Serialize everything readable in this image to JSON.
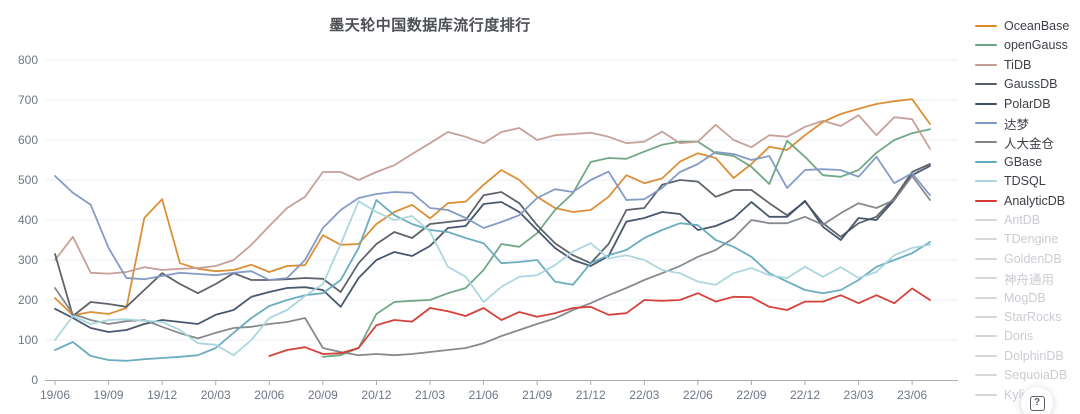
{
  "title": "墨天轮中国数据库流行度排行",
  "help_button": {
    "label": "?"
  },
  "axis": {
    "y_ticks": [
      0,
      100,
      200,
      300,
      400,
      500,
      600,
      700,
      800
    ],
    "x_labels": [
      "19/06",
      "19/09",
      "19/12",
      "20/03",
      "20/06",
      "20/09",
      "20/12",
      "21/03",
      "21/06",
      "21/09",
      "21/12",
      "22/03",
      "22/06",
      "22/09",
      "22/12",
      "23/03",
      "23/06"
    ]
  },
  "colors": {
    "grid": "#e8eef6",
    "axis_line": "#a7adb5",
    "tick_label": "#6e7686",
    "inactive_legend": "#d5d8db"
  },
  "chart_data": {
    "type": "line",
    "title": "墨天轮中国数据库流行度排行",
    "xlabel": "",
    "ylabel": "",
    "ylim": [
      0,
      800
    ],
    "grid": true,
    "legend_position": "right",
    "x_quarter_labels": [
      "19/06",
      "19/09",
      "19/12",
      "20/03",
      "20/06",
      "20/09",
      "20/12",
      "21/03",
      "21/06",
      "21/09",
      "21/12",
      "22/03",
      "22/06",
      "22/09",
      "22/12",
      "23/03",
      "23/06"
    ],
    "points_per_series": 50,
    "note": "values are monthly from 2019/06 through 2023/07, read off 0-800 axis",
    "series": [
      {
        "name": "OceanBase",
        "color": "#d98a2d",
        "values": [
          205,
          162,
          170,
          165,
          180,
          405,
          452,
          292,
          278,
          272,
          275,
          288,
          270,
          285,
          287,
          362,
          338,
          340,
          390,
          420,
          438,
          404,
          442,
          446,
          488,
          525,
          500,
          458,
          430,
          420,
          425,
          458,
          512,
          492,
          504,
          546,
          567,
          555,
          505,
          540,
          583,
          575,
          612,
          645,
          665,
          678,
          690,
          697,
          702,
          640
        ]
      },
      {
        "name": "openGauss",
        "color": "#69a37f",
        "values": [
          null,
          null,
          null,
          null,
          null,
          null,
          null,
          null,
          null,
          null,
          null,
          null,
          null,
          null,
          null,
          58,
          62,
          80,
          165,
          195,
          198,
          200,
          217,
          230,
          275,
          340,
          333,
          367,
          425,
          467,
          545,
          555,
          553,
          571,
          588,
          596,
          596,
          567,
          560,
          533,
          490,
          598,
          558,
          512,
          508,
          525,
          568,
          600,
          617,
          627
        ]
      },
      {
        "name": "TiDB",
        "color": "#c49c93",
        "values": [
          300,
          358,
          268,
          266,
          270,
          282,
          275,
          278,
          280,
          285,
          300,
          338,
          385,
          430,
          458,
          520,
          520,
          500,
          520,
          537,
          565,
          592,
          620,
          608,
          592,
          620,
          630,
          600,
          612,
          615,
          618,
          608,
          592,
          596,
          621,
          592,
          596,
          638,
          600,
          582,
          612,
          608,
          633,
          648,
          635,
          662,
          612,
          657,
          652,
          578
        ]
      },
      {
        "name": "GaussDB",
        "color": "#565c63",
        "values": [
          315,
          160,
          195,
          190,
          183,
          225,
          267,
          240,
          217,
          240,
          267,
          250,
          250,
          252,
          255,
          253,
          220,
          292,
          340,
          370,
          355,
          390,
          395,
          400,
          462,
          470,
          442,
          387,
          342,
          312,
          292,
          340,
          425,
          430,
          488,
          500,
          496,
          458,
          475,
          475,
          442,
          412,
          446,
          392,
          358,
          392,
          408,
          455,
          520,
          540
        ]
      },
      {
        "name": "PolarDB",
        "color": "#3f4f66",
        "values": [
          178,
          155,
          130,
          120,
          125,
          140,
          150,
          145,
          140,
          163,
          175,
          208,
          220,
          230,
          232,
          225,
          183,
          255,
          300,
          320,
          310,
          335,
          380,
          385,
          440,
          445,
          420,
          375,
          330,
          300,
          285,
          310,
          396,
          405,
          420,
          415,
          375,
          385,
          404,
          445,
          408,
          408,
          448,
          383,
          350,
          405,
          400,
          450,
          512,
          535
        ]
      },
      {
        "name": "达梦",
        "color": "#7e97c4",
        "values": [
          510,
          468,
          438,
          330,
          255,
          252,
          260,
          268,
          265,
          262,
          268,
          272,
          250,
          255,
          300,
          380,
          425,
          455,
          465,
          470,
          468,
          430,
          425,
          405,
          380,
          395,
          412,
          455,
          477,
          470,
          500,
          521,
          450,
          452,
          480,
          520,
          540,
          570,
          565,
          550,
          560,
          480,
          525,
          527,
          525,
          508,
          558,
          492,
          517,
          462
        ]
      },
      {
        "name": "人大金仓",
        "color": "#828489",
        "values": [
          230,
          165,
          150,
          140,
          147,
          150,
          133,
          117,
          104,
          118,
          130,
          133,
          140,
          145,
          155,
          80,
          70,
          62,
          65,
          62,
          65,
          70,
          75,
          80,
          92,
          110,
          125,
          140,
          154,
          175,
          192,
          212,
          230,
          250,
          267,
          285,
          308,
          325,
          355,
          400,
          392,
          392,
          408,
          388,
          417,
          442,
          430,
          450,
          510,
          450
        ]
      },
      {
        "name": "GBase",
        "color": "#64a9bd",
        "values": [
          75,
          95,
          60,
          50,
          48,
          52,
          55,
          58,
          62,
          80,
          118,
          155,
          185,
          200,
          212,
          217,
          250,
          330,
          450,
          412,
          390,
          375,
          370,
          355,
          342,
          292,
          295,
          300,
          246,
          238,
          292,
          312,
          325,
          355,
          375,
          392,
          387,
          350,
          333,
          308,
          267,
          246,
          225,
          217,
          225,
          250,
          283,
          300,
          317,
          345
        ]
      },
      {
        "name": "TDSQL",
        "color": "#a9d5dc",
        "values": [
          100,
          160,
          140,
          150,
          152,
          148,
          145,
          125,
          92,
          88,
          62,
          100,
          155,
          175,
          210,
          240,
          340,
          447,
          420,
          400,
          410,
          371,
          283,
          258,
          195,
          233,
          258,
          262,
          287,
          321,
          342,
          304,
          312,
          300,
          275,
          267,
          246,
          238,
          267,
          280,
          262,
          255,
          283,
          258,
          282,
          255,
          270,
          312,
          330,
          338
        ]
      },
      {
        "name": "AnalyticDB",
        "color": "#d23a32",
        "values": [
          null,
          null,
          null,
          null,
          null,
          null,
          null,
          null,
          null,
          null,
          null,
          null,
          60,
          75,
          82,
          65,
          67,
          80,
          137,
          150,
          146,
          180,
          172,
          160,
          180,
          150,
          170,
          158,
          167,
          180,
          183,
          163,
          167,
          200,
          198,
          200,
          217,
          196,
          208,
          207,
          183,
          175,
          196,
          196,
          212,
          192,
          212,
          192,
          229,
          200
        ]
      }
    ],
    "inactive_series": [
      "AntDB",
      "TDengine",
      "GoldenDB",
      "神舟通用",
      "MogDB",
      "StarRocks",
      "Doris",
      "DolphinDB",
      "SequoiaDB",
      "Kylig"
    ]
  }
}
